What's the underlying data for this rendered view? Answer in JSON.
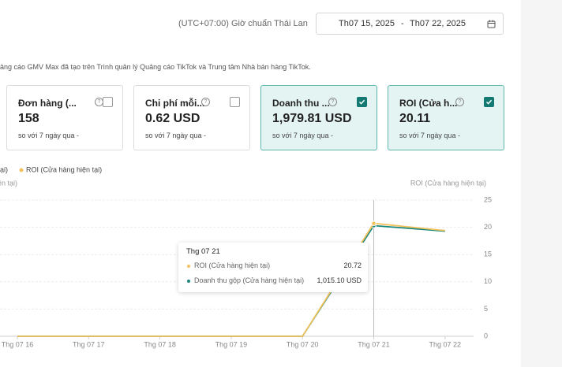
{
  "header": {
    "timezone": "(UTC+07:00) Giờ chuẩn Thái Lan",
    "date_start": "Th07 15, 2025",
    "date_sep": "-",
    "date_end": "Th07 22, 2025"
  },
  "notice": "ảng cáo GMV Max đã tạo trên Trình quản lý Quảng cáo TikTok và Trung tâm Nhà bán hàng TikTok.",
  "cards": [
    {
      "title": "Đơn hàng (...",
      "value": "158",
      "compare": "so với 7 ngày qua -",
      "checked": false
    },
    {
      "title": "Chi phí mỗi...",
      "value": "0.62 USD",
      "compare": "so với 7 ngày qua -",
      "checked": false
    },
    {
      "title": "Doanh thu ...",
      "value": "1,979.81 USD",
      "compare": "so với 7 ngày qua -",
      "checked": true
    },
    {
      "title": "ROI (Cửa h...",
      "value": "20.11",
      "compare": "so với 7 ngày qua -",
      "checked": true
    }
  ],
  "chart_data": {
    "type": "line",
    "categories": [
      "Thg 07 16",
      "Thg 07 17",
      "Thg 07 18",
      "Thg 07 19",
      "Thg 07 20",
      "Thg 07 21",
      "Thg 07 22"
    ],
    "series": [
      {
        "name": "ROI (Cửa hàng hiện tại)",
        "color": "#f2c25c",
        "axis": "y2",
        "values": [
          0,
          0,
          0,
          0,
          0,
          20.72,
          19.4
        ]
      },
      {
        "name": "Doanh thu gộp (Cửa hàng hiện tại)",
        "color": "#17877c",
        "values": [
          0,
          0,
          0,
          0,
          0,
          1015.1,
          965
        ],
        "value_labels": [
          null,
          null,
          null,
          null,
          null,
          "1,015.10 USD",
          null
        ]
      }
    ],
    "ylim": [
      0,
      1250
    ],
    "y2lim": [
      0,
      25
    ],
    "y2ticks": [
      0,
      5,
      10,
      15,
      20,
      25
    ],
    "grid": true,
    "tooltip_index": 5
  }
}
